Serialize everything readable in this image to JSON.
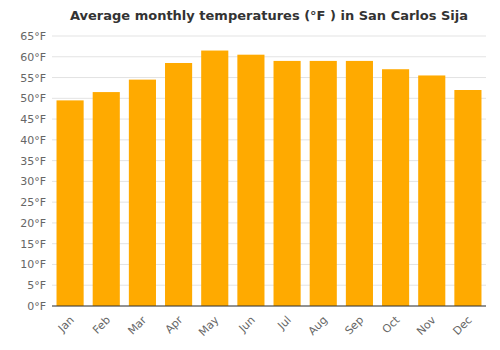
{
  "chart_data": {
    "type": "bar",
    "title": "Average monthly temperatures (°F ) in San Carlos Sija",
    "categories": [
      "Jan",
      "Feb",
      "Mar",
      "Apr",
      "May",
      "Jun",
      "Jul",
      "Aug",
      "Sep",
      "Oct",
      "Nov",
      "Dec"
    ],
    "values": [
      49.5,
      51.5,
      54.5,
      58.5,
      61.5,
      60.5,
      59.0,
      59.0,
      59.0,
      57.0,
      55.5,
      52.0
    ],
    "color": "#FFAA00",
    "ylim": [
      0,
      65
    ],
    "yticks": [
      {
        "value": 0,
        "label": "0°F"
      },
      {
        "value": 5,
        "label": "5°F"
      },
      {
        "value": 10,
        "label": "10°F"
      },
      {
        "value": 15,
        "label": "15°F"
      },
      {
        "value": 20,
        "label": "20°F"
      },
      {
        "value": 25,
        "label": "25°F"
      },
      {
        "value": 30,
        "label": "30°F"
      },
      {
        "value": 35,
        "label": "35°F"
      },
      {
        "value": 40,
        "label": "40°F"
      },
      {
        "value": 45,
        "label": "45°F"
      },
      {
        "value": 50,
        "label": "50°F"
      },
      {
        "value": 55,
        "label": "55°F"
      },
      {
        "value": 60,
        "label": "60°F"
      },
      {
        "value": 65,
        "label": "65°F"
      }
    ],
    "grid": true
  }
}
